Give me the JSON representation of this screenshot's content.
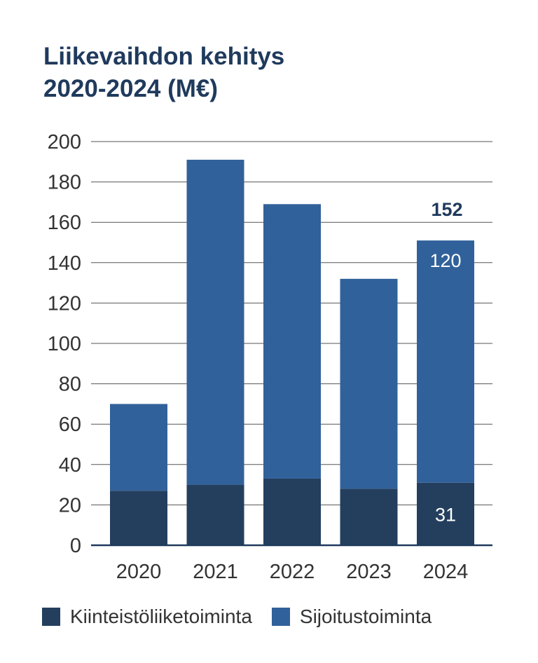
{
  "title_line1": "Liikevaihdon kehitys",
  "title_line2": "2020-2024 (M€)",
  "chart_data": {
    "type": "bar",
    "stacked": true,
    "categories": [
      "2020",
      "2021",
      "2022",
      "2023",
      "2024"
    ],
    "series": [
      {
        "name": "Kiinteistöliiketoiminta",
        "color": "#243f5e",
        "values": [
          27,
          30,
          33,
          28,
          31
        ]
      },
      {
        "name": "Sijoitustoiminta",
        "color": "#31619a",
        "values": [
          43,
          161,
          136,
          104,
          120
        ]
      }
    ],
    "ylim": [
      0,
      200
    ],
    "yticks": [
      0,
      20,
      40,
      60,
      80,
      100,
      120,
      140,
      160,
      180,
      200
    ],
    "grid": true,
    "legend": "bottom",
    "annotations": [
      {
        "category": "2024",
        "series": "Kiinteistöliiketoiminta",
        "text": "31"
      },
      {
        "category": "2024",
        "series": "Sijoitustoiminta",
        "text": "120"
      },
      {
        "category": "2024",
        "position": "total",
        "text": "152"
      }
    ]
  }
}
